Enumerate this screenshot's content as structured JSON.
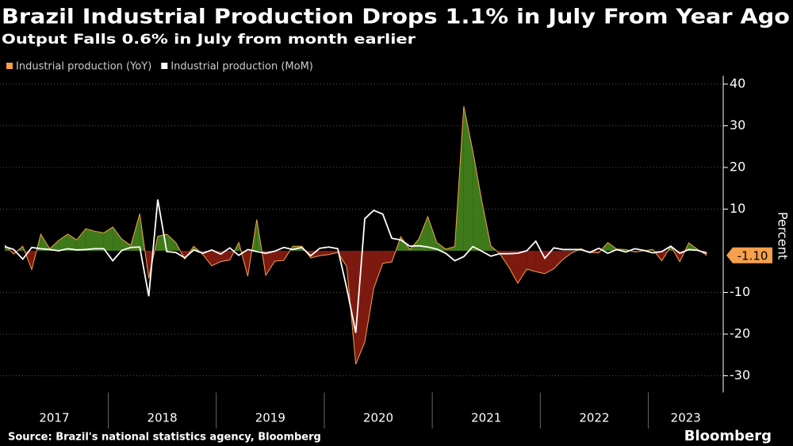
{
  "chart_data": {
    "type": "area_line",
    "title": "Brazil Industrial Production Drops 1.1% in July From Year Ago",
    "subtitle": "Output Falls 0.6% in July from month earlier",
    "y_label": "Percent",
    "source": "Source: Brazil's national statistics agency, Bloomberg",
    "brand": "Bloomberg",
    "x": [
      "2017-01",
      "2017-02",
      "2017-03",
      "2017-04",
      "2017-05",
      "2017-06",
      "2017-07",
      "2017-08",
      "2017-09",
      "2017-10",
      "2017-11",
      "2017-12",
      "2018-01",
      "2018-02",
      "2018-03",
      "2018-04",
      "2018-05",
      "2018-06",
      "2018-07",
      "2018-08",
      "2018-09",
      "2018-10",
      "2018-11",
      "2018-12",
      "2019-01",
      "2019-02",
      "2019-03",
      "2019-04",
      "2019-05",
      "2019-06",
      "2019-07",
      "2019-08",
      "2019-09",
      "2019-10",
      "2019-11",
      "2019-12",
      "2020-01",
      "2020-02",
      "2020-03",
      "2020-04",
      "2020-05",
      "2020-06",
      "2020-07",
      "2020-08",
      "2020-09",
      "2020-10",
      "2020-11",
      "2020-12",
      "2021-01",
      "2021-02",
      "2021-03",
      "2021-04",
      "2021-05",
      "2021-06",
      "2021-07",
      "2021-08",
      "2021-09",
      "2021-10",
      "2021-11",
      "2021-12",
      "2022-01",
      "2022-02",
      "2022-03",
      "2022-04",
      "2022-05",
      "2022-06",
      "2022-07",
      "2022-08",
      "2022-09",
      "2022-10",
      "2022-11",
      "2022-12",
      "2023-01",
      "2023-02",
      "2023-03",
      "2023-04",
      "2023-05",
      "2023-06",
      "2023-07"
    ],
    "xticks": [
      "2017",
      "2018",
      "2019",
      "2020",
      "2021",
      "2022",
      "2023"
    ],
    "series": [
      {
        "name": "Industrial production (YoY)",
        "color": "#f5a04b",
        "positive_color": "#3f7a1a",
        "negative_color": "#7d1a10",
        "values": [
          1.4,
          -0.8,
          1.1,
          -4.5,
          4.0,
          0.5,
          2.5,
          4.0,
          2.6,
          5.3,
          4.7,
          4.3,
          5.7,
          2.8,
          1.3,
          8.9,
          -6.6,
          3.5,
          4.0,
          2.0,
          -2.0,
          1.1,
          -0.9,
          -3.6,
          -2.6,
          -2.2,
          2.0,
          -6.1,
          7.5,
          -5.9,
          -2.5,
          -2.3,
          1.1,
          1.1,
          -1.7,
          -1.2,
          -0.9,
          -0.4,
          -3.8,
          -27.2,
          -21.9,
          -9.0,
          -3.0,
          -2.7,
          3.4,
          0.3,
          2.8,
          8.2,
          2.0,
          0.4,
          1.0,
          34.7,
          24.0,
          12.0,
          1.2,
          -0.7,
          -3.9,
          -7.8,
          -4.4,
          -5.0,
          -5.5,
          -4.3,
          -2.1,
          -0.5,
          0.5,
          -0.4,
          -0.5,
          2.0,
          0.4,
          0.3,
          -0.3,
          0.0,
          0.3,
          -2.4,
          1.1,
          -2.6,
          1.9,
          0.3,
          -1.1
        ],
        "value_labels": [
          null,
          null,
          null,
          null,
          null,
          null,
          null,
          null,
          null,
          null,
          null,
          null,
          null,
          null,
          null,
          null,
          null,
          null,
          null,
          null,
          null,
          null,
          null,
          null,
          null,
          null,
          null,
          null,
          null,
          null,
          null,
          null,
          null,
          null,
          null,
          null,
          null,
          null,
          null,
          null,
          null,
          null,
          null,
          null,
          null,
          null,
          null,
          null,
          null,
          null,
          null,
          null,
          null,
          null,
          null,
          null,
          null,
          null,
          null,
          null,
          null,
          null,
          null,
          null,
          null,
          null,
          null,
          null,
          null,
          null,
          null,
          null,
          null,
          null,
          null,
          null,
          null,
          null,
          "-1.10"
        ]
      },
      {
        "name": "Industrial production (MoM)",
        "color": "#ffffff",
        "values": [
          1.0,
          0.3,
          -2.0,
          0.8,
          0.5,
          0.3,
          0.0,
          0.5,
          0.2,
          0.3,
          0.5,
          0.5,
          -2.4,
          0.1,
          0.8,
          0.9,
          -10.9,
          12.3,
          -0.2,
          -0.4,
          -1.7,
          0.2,
          -0.6,
          0.2,
          -0.8,
          0.7,
          -1.1,
          0.3,
          -0.2,
          -0.6,
          -0.1,
          0.8,
          0.3,
          0.8,
          -1.2,
          0.6,
          0.9,
          0.5,
          -9.0,
          -19.7,
          7.7,
          9.7,
          8.8,
          3.0,
          2.6,
          1.1,
          1.2,
          0.9,
          0.4,
          -0.6,
          -2.4,
          -1.4,
          1.0,
          -0.1,
          -1.3,
          -0.7,
          -0.7,
          -0.6,
          0.0,
          2.3,
          -1.8,
          0.7,
          0.3,
          0.3,
          0.3,
          -0.4,
          0.6,
          -0.6,
          0.3,
          -0.3,
          0.5,
          0.1,
          -0.5,
          -0.2,
          1.1,
          -0.6,
          0.3,
          0.1,
          -0.6
        ]
      }
    ],
    "ylim": [
      -34,
      42
    ],
    "yticks": [
      -30,
      -20,
      -10,
      10,
      20,
      30,
      40
    ],
    "grid": true
  }
}
